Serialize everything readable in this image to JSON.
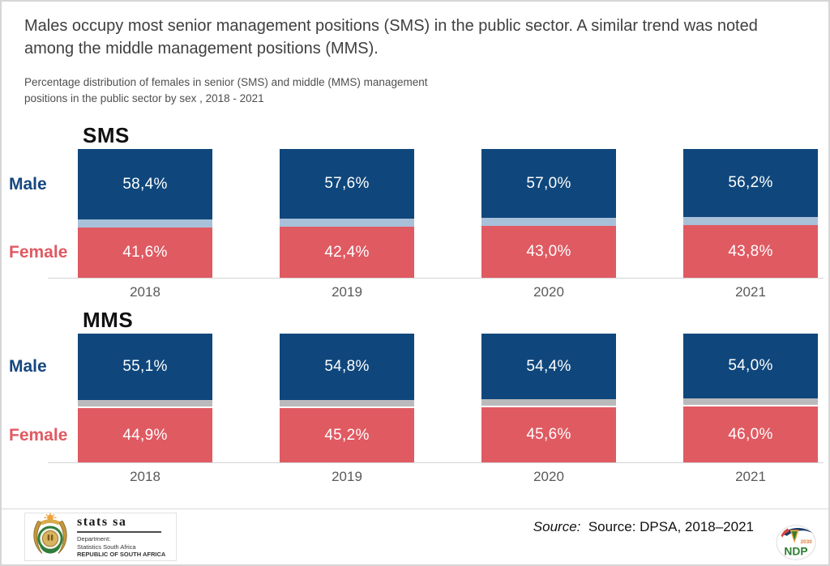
{
  "page": {
    "title": "Males occupy most senior management positions (SMS) in the public sector. A similar trend was noted among the middle management positions (MMS).",
    "subtitle_lines": [
      "Percentage distribution of females in senior (SMS) and middle (MMS) management",
      "positions in the public sector by sex , 2018 - 2021"
    ]
  },
  "chart_data": [
    {
      "type": "bar",
      "stacked": true,
      "title": "SMS",
      "categories": [
        "2018",
        "2019",
        "2020",
        "2021"
      ],
      "series": [
        {
          "name": "Male",
          "values": [
            58.4,
            57.6,
            57.0,
            56.2
          ],
          "labels": [
            "58,4%",
            "57,6%",
            "57,0%",
            "56,2%"
          ],
          "color": "#0f477c",
          "label_color": "#15477f"
        },
        {
          "name": "Female",
          "values": [
            41.6,
            42.4,
            43.0,
            43.8
          ],
          "labels": [
            "41,6%",
            "42,4%",
            "43,0%",
            "43,8%"
          ],
          "color": "#e05a62",
          "label_color": "#e05a62"
        }
      ],
      "divider_color": "#a9c0d9",
      "divider_style": "solid",
      "ylim": [
        0,
        100
      ],
      "value_format": "comma-decimal percent",
      "legend_position": "left-row-labels",
      "grid": false
    },
    {
      "type": "bar",
      "stacked": true,
      "title": "MMS",
      "categories": [
        "2018",
        "2019",
        "2020",
        "2021"
      ],
      "series": [
        {
          "name": "Male",
          "values": [
            55.1,
            54.8,
            54.4,
            54.0
          ],
          "labels": [
            "55,1%",
            "54,8%",
            "54,4%",
            "54,0%"
          ],
          "color": "#0f477c",
          "label_color": "#15477f"
        },
        {
          "name": "Female",
          "values": [
            44.9,
            45.2,
            45.6,
            46.0
          ],
          "labels": [
            "44,9%",
            "45,2%",
            "45,6%",
            "46,0%"
          ],
          "color": "#e05a62",
          "label_color": "#e05a62"
        }
      ],
      "divider_color": "#bababc",
      "divider_style": "with-gap",
      "divider_gap_color": "#ffffff",
      "ylim": [
        0,
        100
      ],
      "value_format": "comma-decimal percent",
      "legend_position": "left-row-labels",
      "grid": false
    }
  ],
  "footer": {
    "statssa": {
      "brand": "stats sa",
      "dept_line1": "Department:",
      "dept_line2": "Statistics South Africa",
      "dept_line3": "REPUBLIC OF SOUTH AFRICA"
    },
    "source_prefix": "Source:",
    "source_text": "Source: DPSA, 2018–2021",
    "ndp": {
      "label": "NDP",
      "year": "2030"
    }
  },
  "colors": {
    "male_bar": "#0f477c",
    "female_bar": "#e05a62",
    "sms_divider": "#a9c0d9",
    "mms_divider": "#bababc",
    "axis_line": "#d4d4d4",
    "year_label": "#595959",
    "title_text": "#3f3f3f"
  }
}
